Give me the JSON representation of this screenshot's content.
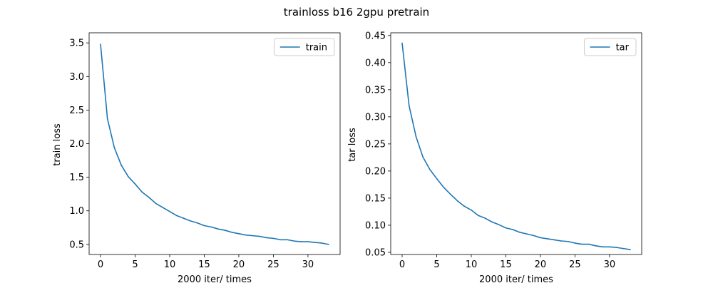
{
  "figure": {
    "suptitle": "trainloss b16 2gpu pretrain"
  },
  "colors": {
    "series": "#1f77b4",
    "axes": "#000000",
    "background": "#ffffff"
  },
  "chart_data": [
    {
      "type": "line",
      "title": "",
      "xlabel": "2000 iter/ times",
      "ylabel": "train loss",
      "xlim": [
        -1.65,
        34.65
      ],
      "ylim": [
        0.35,
        3.65
      ],
      "xticks": [
        0,
        5,
        10,
        15,
        20,
        25,
        30
      ],
      "xtick_labels": [
        "0",
        "5",
        "10",
        "15",
        "20",
        "25",
        "30"
      ],
      "yticks": [
        0.5,
        1.0,
        1.5,
        2.0,
        2.5,
        3.0,
        3.5
      ],
      "ytick_labels": [
        "0.5",
        "1.0",
        "1.5",
        "2.0",
        "2.5",
        "3.0",
        "3.5"
      ],
      "grid": false,
      "legend_position": "upper right",
      "series": [
        {
          "name": "train",
          "x": [
            0,
            1,
            2,
            3,
            4,
            5,
            6,
            7,
            8,
            9,
            10,
            11,
            12,
            13,
            14,
            15,
            16,
            17,
            18,
            19,
            20,
            21,
            22,
            23,
            24,
            25,
            26,
            27,
            28,
            29,
            30,
            31,
            32,
            33
          ],
          "y": [
            3.48,
            2.37,
            1.94,
            1.68,
            1.51,
            1.4,
            1.28,
            1.2,
            1.11,
            1.05,
            0.99,
            0.93,
            0.89,
            0.85,
            0.82,
            0.78,
            0.76,
            0.73,
            0.71,
            0.68,
            0.66,
            0.64,
            0.63,
            0.62,
            0.6,
            0.59,
            0.57,
            0.57,
            0.55,
            0.54,
            0.54,
            0.53,
            0.52,
            0.5
          ]
        }
      ]
    },
    {
      "type": "line",
      "title": "",
      "xlabel": "2000 iter/ times",
      "ylabel": "tar loss",
      "xlim": [
        -1.65,
        34.65
      ],
      "ylim": [
        0.046,
        0.455
      ],
      "xticks": [
        0,
        5,
        10,
        15,
        20,
        25,
        30
      ],
      "xtick_labels": [
        "0",
        "5",
        "10",
        "15",
        "20",
        "25",
        "30"
      ],
      "yticks": [
        0.05,
        0.1,
        0.15,
        0.2,
        0.25,
        0.3,
        0.35,
        0.4,
        0.45
      ],
      "ytick_labels": [
        "0.05",
        "0.10",
        "0.15",
        "0.20",
        "0.25",
        "0.30",
        "0.35",
        "0.40",
        "0.45"
      ],
      "grid": false,
      "legend_position": "upper right",
      "series": [
        {
          "name": "tar",
          "x": [
            0,
            1,
            2,
            3,
            4,
            5,
            6,
            7,
            8,
            9,
            10,
            11,
            12,
            13,
            14,
            15,
            16,
            17,
            18,
            19,
            20,
            21,
            22,
            23,
            24,
            25,
            26,
            27,
            28,
            29,
            30,
            31,
            32,
            33
          ],
          "y": [
            0.436,
            0.321,
            0.264,
            0.226,
            0.203,
            0.186,
            0.17,
            0.157,
            0.145,
            0.135,
            0.128,
            0.118,
            0.113,
            0.106,
            0.101,
            0.095,
            0.092,
            0.087,
            0.084,
            0.081,
            0.077,
            0.075,
            0.073,
            0.071,
            0.07,
            0.067,
            0.065,
            0.065,
            0.062,
            0.06,
            0.06,
            0.059,
            0.057,
            0.055
          ]
        }
      ]
    }
  ]
}
